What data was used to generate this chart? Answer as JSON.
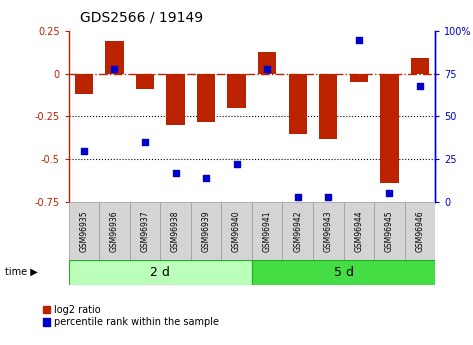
{
  "title": "GDS2566 / 19149",
  "samples": [
    "GSM96935",
    "GSM96936",
    "GSM96937",
    "GSM96938",
    "GSM96939",
    "GSM96940",
    "GSM96941",
    "GSM96942",
    "GSM96943",
    "GSM96944",
    "GSM96945",
    "GSM96946"
  ],
  "log2_ratio": [
    -0.12,
    0.19,
    -0.09,
    -0.3,
    -0.28,
    -0.2,
    0.13,
    -0.35,
    -0.38,
    -0.05,
    -0.64,
    0.09
  ],
  "percentile_rank": [
    30,
    78,
    35,
    17,
    14,
    22,
    78,
    3,
    3,
    95,
    5,
    68
  ],
  "bar_color": "#bb2200",
  "dot_color": "#0000cc",
  "ylim_left": [
    -0.75,
    0.25
  ],
  "ylim_right": [
    0,
    100
  ],
  "hlines_dotted": [
    -0.25,
    -0.5
  ],
  "group1_samples": 6,
  "group1_label": "2 d",
  "group2_label": "5 d",
  "group1_color": "#bbffbb",
  "group2_color": "#44dd44",
  "legend_red_label": "log2 ratio",
  "legend_blue_label": "percentile rank within the sample",
  "time_label": "time",
  "background_color": "white",
  "bar_width": 0.6
}
